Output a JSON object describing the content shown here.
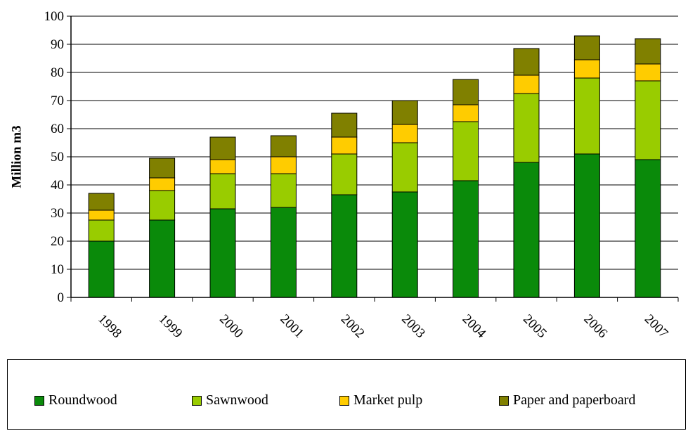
{
  "chart_data": {
    "type": "bar",
    "stacked": true,
    "ylabel": "Million m3",
    "xlabel": "",
    "ylim": [
      0,
      100
    ],
    "yticks": [
      0,
      10,
      20,
      30,
      40,
      50,
      60,
      70,
      80,
      90,
      100
    ],
    "grid": true,
    "legend_position": "bottom",
    "categories": [
      "1998",
      "1999",
      "2000",
      "2001",
      "2002",
      "2003",
      "2004",
      "2005",
      "2006",
      "2007"
    ],
    "series": [
      {
        "name": "Roundwood",
        "color": "#0a8a0a",
        "values": [
          20,
          27.5,
          31.5,
          32,
          36.5,
          37.5,
          41.5,
          48,
          51,
          49
        ]
      },
      {
        "name": "Sawnwood",
        "color": "#99cc00",
        "values": [
          7.5,
          10.5,
          12.5,
          12,
          14.5,
          17.5,
          21,
          24.5,
          27,
          28
        ]
      },
      {
        "name": "Market pulp",
        "color": "#ffcc00",
        "values": [
          3.5,
          4.5,
          5,
          6,
          6,
          6.5,
          6,
          6.5,
          6.5,
          6
        ]
      },
      {
        "name": "Paper and paperboard",
        "color": "#808000",
        "values": [
          6,
          7,
          8,
          7.5,
          8.5,
          8.5,
          9,
          9.5,
          8.5,
          9
        ]
      }
    ]
  }
}
